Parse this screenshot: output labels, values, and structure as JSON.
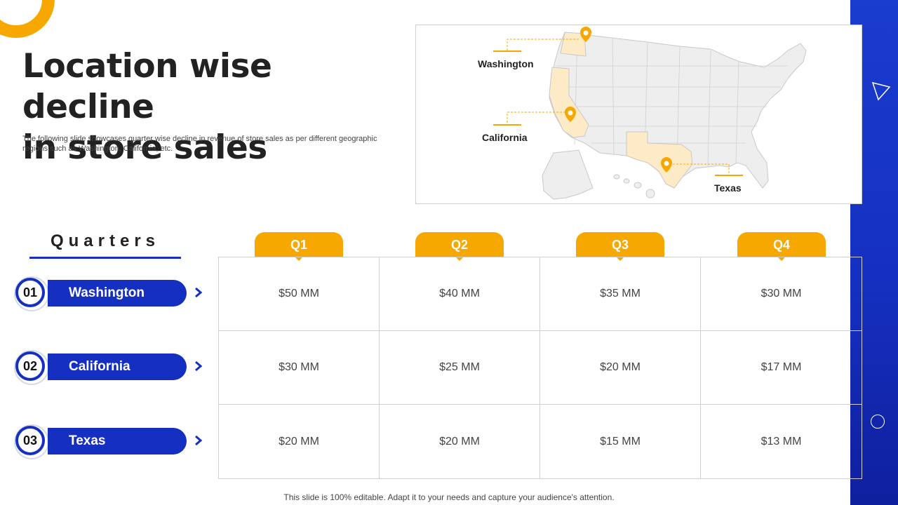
{
  "slide": {
    "title_line1": "Location wise decline",
    "title_line2": "in store sales",
    "subtitle": "The following slide showcases quarter wise decline in revenue of store sales as per different geographic regions such as Washington, California, etc.",
    "footer": "This slide is 100% editable. Adapt it to your needs and capture your audience's attention."
  },
  "map": {
    "labels": [
      "Washington",
      "California",
      "Texas"
    ],
    "highlight_color": "#fdebc8",
    "pin_color": "#f7a800"
  },
  "quarters_heading": "Quarters",
  "locations": [
    {
      "number": "01",
      "name": "Washington"
    },
    {
      "number": "02",
      "name": "California"
    },
    {
      "number": "03",
      "name": "Texas"
    }
  ],
  "quarters": [
    "Q1",
    "Q2",
    "Q3",
    "Q4"
  ],
  "table": [
    [
      "$50 MM",
      "$40 MM",
      "$35 MM",
      "$30 MM"
    ],
    [
      "$30 MM",
      "$25 MM",
      "$20 MM",
      "$17 MM"
    ],
    [
      "$20 MM",
      "$20 MM",
      "$15 MM",
      "$13 MM"
    ]
  ],
  "colors": {
    "primary_blue": "#1530c0",
    "accent_orange": "#f7a800"
  }
}
